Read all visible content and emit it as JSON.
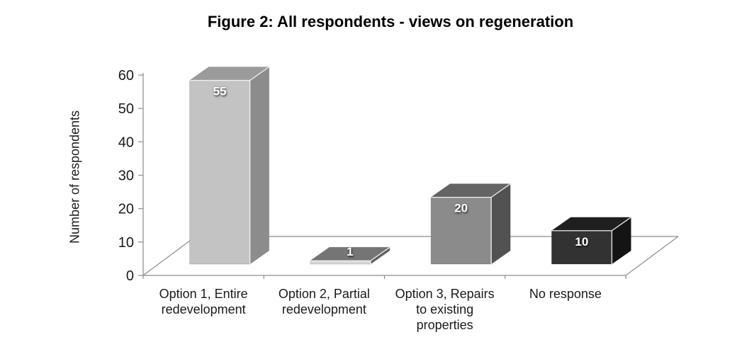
{
  "chart_data": {
    "type": "bar",
    "style": "3d",
    "title": "Figure 2: All respondents - views on regeneration",
    "ylabel": "Number of respondents",
    "xlabel": "",
    "ylim": [
      0,
      60
    ],
    "y_ticks": [
      0,
      10,
      20,
      30,
      40,
      50,
      60
    ],
    "grid": false,
    "legend": "none",
    "categories": [
      "Option 1, Entire redevelopment",
      "Option 2, Partial redevelopment",
      "Option 3, Repairs to existing properties",
      "No response"
    ],
    "category_label_lines": [
      [
        "Option 1, Entire",
        "redevelopment"
      ],
      [
        "Option 2, Partial",
        "redevelopment"
      ],
      [
        "Option 3, Repairs",
        "to existing",
        "properties"
      ],
      [
        "No response"
      ]
    ],
    "values": [
      55,
      1,
      20,
      10
    ],
    "data_labels": [
      "55",
      "1",
      "20",
      "10"
    ],
    "bar_colors": [
      {
        "front": "#c3c3c3",
        "top": "#9b9b9b",
        "side": "#8c8c8c"
      },
      {
        "front": "#d8d8d8",
        "top": "#757575",
        "side": "#5e5e5e"
      },
      {
        "front": "#8b8b8b",
        "top": "#646464",
        "side": "#525252"
      },
      {
        "front": "#323232",
        "top": "#1f1f1f",
        "side": "#141414"
      }
    ],
    "axis_color": "#8c8c8c",
    "text_color": "#1a1a1a",
    "data_label_color": "#ffffff",
    "background_color": "#ffffff"
  }
}
